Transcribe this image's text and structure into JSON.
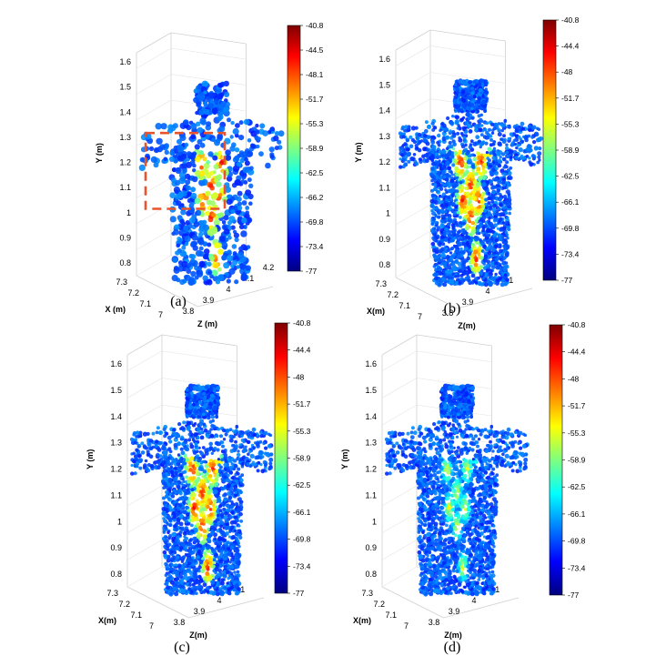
{
  "colors": {
    "jet": [
      "#00007f",
      "#0000ff",
      "#007fff",
      "#00ffff",
      "#7fff7f",
      "#ffff00",
      "#ff7f00",
      "#ff0000",
      "#7f0000"
    ],
    "box_frame": "#d0d0d0",
    "highlight_box": "#e8542a"
  },
  "chart_data": [
    {
      "type": "scatter",
      "panel_label": "(a)",
      "ylabel": "Y (m)",
      "xlabel": "X (m)",
      "zlabel": "Z (m)",
      "y_ticks": [
        "0.8",
        "0.9",
        "1",
        "1.1",
        "1.2",
        "1.3",
        "1.4",
        "1.5",
        "1.6"
      ],
      "x_ticks": [
        "7",
        "7.1",
        "7.2",
        "7.3"
      ],
      "z_ticks": [
        "3.8",
        "3.9",
        "4",
        "4.1",
        "4.2"
      ],
      "ylim": [
        0.75,
        1.6
      ],
      "colorbar": {
        "min": -77,
        "max": -40.8,
        "ticks": [
          "-40.8",
          "-44.5",
          "-48.1",
          "-51.7",
          "-55.3",
          "-58.9",
          "-62.5",
          "-66.2",
          "-69.8",
          "-73.4",
          "-77"
        ]
      },
      "highlight": "dashed rectangle over torso, Y from 0.9 to 1.25"
    },
    {
      "type": "scatter",
      "panel_label": "(b)",
      "ylabel": "Y (m)",
      "xlabel": "X(m)",
      "zlabel": "Z(m)",
      "y_ticks": [
        "0.8",
        "0.9",
        "1",
        "1.1",
        "1.2",
        "1.3",
        "1.4",
        "1.5",
        "1.6"
      ],
      "x_ticks": [
        "7",
        "7.1",
        "7.2",
        "7.3"
      ],
      "z_ticks": [
        "3.8",
        "3.9",
        "4",
        "4.1"
      ],
      "ylim": [
        0.75,
        1.6
      ],
      "colorbar": {
        "min": -77,
        "max": -40.8,
        "ticks": [
          "-40.8",
          "-44.4",
          "-48",
          "-51.7",
          "-55.3",
          "-58.9",
          "-62.5",
          "-66.1",
          "-69.8",
          "-73.4",
          "-77"
        ]
      }
    },
    {
      "type": "scatter",
      "panel_label": "(c)",
      "ylabel": "Y (m)",
      "xlabel": "X(m)",
      "zlabel": "Z(m)",
      "y_ticks": [
        "0.8",
        "0.9",
        "1",
        "1.1",
        "1.2",
        "1.3",
        "1.4",
        "1.5",
        "1.6"
      ],
      "x_ticks": [
        "7",
        "7.1",
        "7.2",
        "7.3"
      ],
      "z_ticks": [
        "3.8",
        "3.9",
        "4",
        "4.1"
      ],
      "ylim": [
        0.75,
        1.6
      ],
      "colorbar": {
        "min": -77,
        "max": -40.8,
        "ticks": [
          "-40.8",
          "-44.4",
          "-48",
          "-51.7",
          "-55.3",
          "-58.9",
          "-62.5",
          "-66.1",
          "-69.8",
          "-73.4",
          "-77"
        ]
      }
    },
    {
      "type": "scatter",
      "panel_label": "(d)",
      "ylabel": "Y (m)",
      "xlabel": "X(m)",
      "zlabel": "Z(m)",
      "y_ticks": [
        "0.8",
        "0.9",
        "1",
        "1.1",
        "1.2",
        "1.3",
        "1.4",
        "1.5",
        "1.6"
      ],
      "x_ticks": [
        "7",
        "7.1",
        "7.2",
        "7.3"
      ],
      "z_ticks": [
        "3.8",
        "3.9",
        "4",
        "4.1"
      ],
      "ylim": [
        0.75,
        1.6
      ],
      "colorbar": {
        "min": -77,
        "max": -40.8,
        "ticks": [
          "-40.8",
          "-44.4",
          "-48",
          "-51.7",
          "-55.3",
          "-58.9",
          "-62.5",
          "-66.1",
          "-69.8",
          "-73.4",
          "-77"
        ]
      }
    }
  ]
}
